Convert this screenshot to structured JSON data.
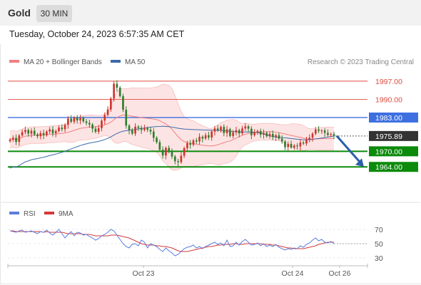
{
  "header": {
    "title": "Gold",
    "timeframe": "30 MIN",
    "datetime": "Tuesday, October 24, 2023 6:57:35 AM CET"
  },
  "legend": {
    "ma20_label": "MA 20 + Bollinger Bands",
    "ma50_label": "MA 50",
    "rsi_label": "RSI",
    "ma9_label": "9MA"
  },
  "watermark": "Research © 2023 Trading Central",
  "colors": {
    "resistance": "#e04a3f",
    "pivot": "#3d6fe0",
    "support": "#0b8a0b",
    "current": "#333333",
    "ma20": "#f08080",
    "ma50": "#3a6aa8",
    "bollinger_fill": "#fde4e4",
    "rsi": "#5b7ddc",
    "rsi_ma": "#d43a3a",
    "candle_up": "#d0342c",
    "candle_down": "#2f7d2f",
    "arrow": "#2c5fa8"
  },
  "chart_data": [
    {
      "type": "candlestick",
      "ylim": [
        1952,
        2003
      ],
      "x_tick_labels": [
        "Oct 23",
        "Oct 24",
        "Oct 26"
      ],
      "levels": [
        {
          "value": 1997.0,
          "label": "1997.00",
          "kind": "resistance",
          "style": "thin"
        },
        {
          "value": 1990.0,
          "label": "1990.00",
          "kind": "resistance",
          "style": "thin"
        },
        {
          "value": 1983.0,
          "label": "1983.00",
          "kind": "pivot",
          "style": "box"
        },
        {
          "value": 1975.89,
          "label": "1975.89",
          "kind": "current",
          "style": "box"
        },
        {
          "value": 1970.0,
          "label": "1970.00",
          "kind": "support",
          "style": "box"
        },
        {
          "value": 1964.0,
          "label": "1964.00",
          "kind": "support",
          "style": "box"
        }
      ],
      "forecast_arrow": {
        "from": 1975.9,
        "to": 1964.0
      },
      "close_series": [
        1974.5,
        1975.2,
        1973.6,
        1976.1,
        1977.4,
        1978.2,
        1976.8,
        1977.9,
        1976.5,
        1975.8,
        1977.0,
        1976.2,
        1977.6,
        1978.4,
        1976.9,
        1977.8,
        1979.1,
        1978.5,
        1980.2,
        1982.6,
        1981.4,
        1983.0,
        1981.9,
        1982.8,
        1981.5,
        1980.9,
        1980.3,
        1978.7,
        1977.5,
        1978.9,
        1981.8,
        1984.0,
        1986.1,
        1990.3,
        1996.0,
        1994.5,
        1991.2,
        1986.0,
        1979.9,
        1978.0,
        1976.8,
        1979.5,
        1979.0,
        1978.2,
        1978.9,
        1978.3,
        1977.6,
        1975.2,
        1973.5,
        1970.6,
        1968.4,
        1971.3,
        1969.8,
        1968.0,
        1966.2,
        1965.8,
        1968.3,
        1971.2,
        1973.1,
        1972.5,
        1974.2,
        1973.8,
        1975.6,
        1974.9,
        1976.2,
        1975.3,
        1977.6,
        1978.8,
        1978.1,
        1979.4,
        1977.0,
        1978.5,
        1975.9,
        1977.3,
        1978.1,
        1976.9,
        1978.8,
        1979.6,
        1978.7,
        1976.2,
        1977.2,
        1977.8,
        1976.4,
        1977.1,
        1975.8,
        1976.7,
        1975.5,
        1976.2,
        1974.9,
        1973.8,
        1971.6,
        1972.8,
        1971.4,
        1972.2,
        1971.9,
        1973.4,
        1973.0,
        1974.6,
        1975.2,
        1976.8,
        1978.4,
        1977.9,
        1978.0,
        1977.1,
        1976.3,
        1976.6,
        1975.9
      ]
    },
    {
      "type": "line",
      "ylim": [
        20,
        80
      ],
      "y_ticks": [
        70,
        50,
        30
      ],
      "series": [
        {
          "name": "RSI",
          "values": [
            68,
            67,
            66,
            68,
            69,
            66,
            67,
            68,
            66,
            64,
            67,
            66,
            69,
            65,
            62,
            66,
            70,
            64,
            58,
            63,
            67,
            61,
            66,
            65,
            62,
            63,
            60,
            58,
            55,
            57,
            61,
            63,
            66,
            70,
            68,
            62,
            56,
            50,
            46,
            44,
            49,
            50,
            47,
            55,
            52,
            44,
            50,
            48,
            46,
            42,
            39,
            44,
            40,
            37,
            33,
            35,
            39,
            43,
            45,
            46,
            48,
            44,
            46,
            43,
            46,
            48,
            50,
            52,
            49,
            51,
            47,
            55,
            46,
            47,
            52,
            48,
            53,
            56,
            52,
            48,
            49,
            51,
            47,
            50,
            46,
            48,
            46,
            49,
            45,
            43,
            41,
            43,
            42,
            44,
            43,
            47,
            45,
            49,
            51,
            55,
            58,
            54,
            56,
            52,
            51,
            53,
            50
          ]
        },
        {
          "name": "9MA",
          "values": [
            68,
            68,
            67,
            67,
            67,
            67,
            67,
            67,
            67,
            67,
            67,
            66,
            67,
            66,
            66,
            66,
            66,
            66,
            65,
            64,
            64,
            64,
            64,
            64,
            63,
            63,
            63,
            62,
            61,
            61,
            61,
            61,
            61,
            62,
            62,
            62,
            61,
            60,
            59,
            58,
            56,
            54,
            52,
            50,
            49,
            48,
            48,
            48,
            47,
            47,
            46,
            46,
            45,
            44,
            42,
            40,
            39,
            39,
            39,
            40,
            41,
            42,
            43,
            44,
            45,
            46,
            46,
            47,
            48,
            48,
            49,
            49,
            49,
            50,
            50,
            49,
            49,
            50,
            50,
            50,
            50,
            50,
            50,
            49,
            49,
            49,
            48,
            48,
            47,
            46,
            45,
            44,
            44,
            43,
            43,
            43,
            43,
            44,
            45,
            46,
            47,
            49,
            50,
            51,
            52,
            52,
            52
          ]
        }
      ]
    }
  ]
}
